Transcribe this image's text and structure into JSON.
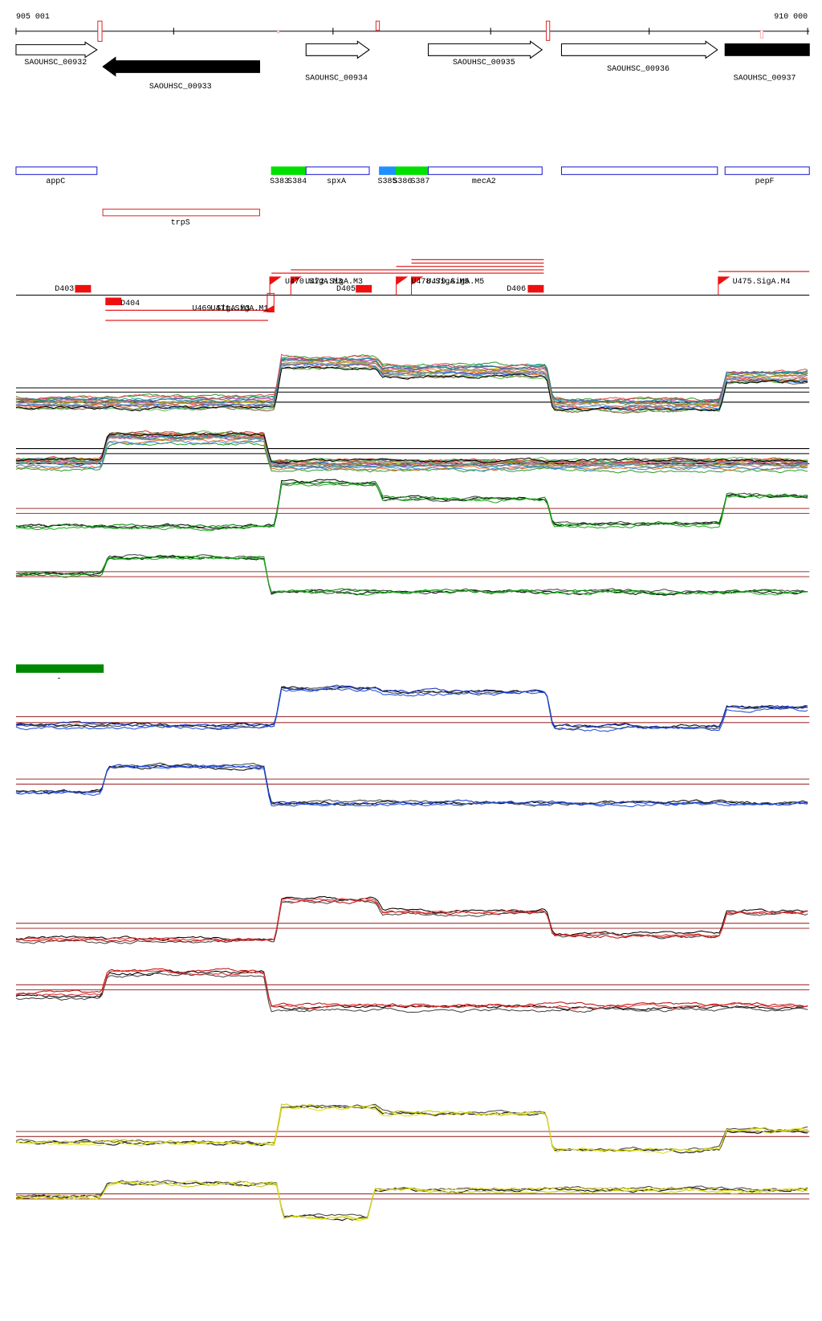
{
  "header": {
    "start": "905 001",
    "end": "910 000"
  },
  "genes": [
    "SAOUHSC_00932",
    "SAOUHSC_00933",
    "SAOUHSC_00934",
    "SAOUHSC_00935",
    "SAOUHSC_00936",
    "SAOUHSC_00937"
  ],
  "features": [
    "appC",
    "spxA",
    "mecA2",
    "pepF"
  ],
  "sites": [
    "S383",
    "S384",
    "S385",
    "S386",
    "S387"
  ],
  "operons": [
    "trpS"
  ],
  "probes": [
    "D403",
    "D404",
    "D405",
    "D406"
  ],
  "promoters": [
    "U469.SigA.M3",
    "U471.SigA.M1",
    "U470.SigA.M3",
    "U472.SigA.M3",
    "U478.SigA.M5",
    "U479.SigA.M5",
    "U475.SigA.M4"
  ],
  "legend": {
    "label": "-"
  }
}
